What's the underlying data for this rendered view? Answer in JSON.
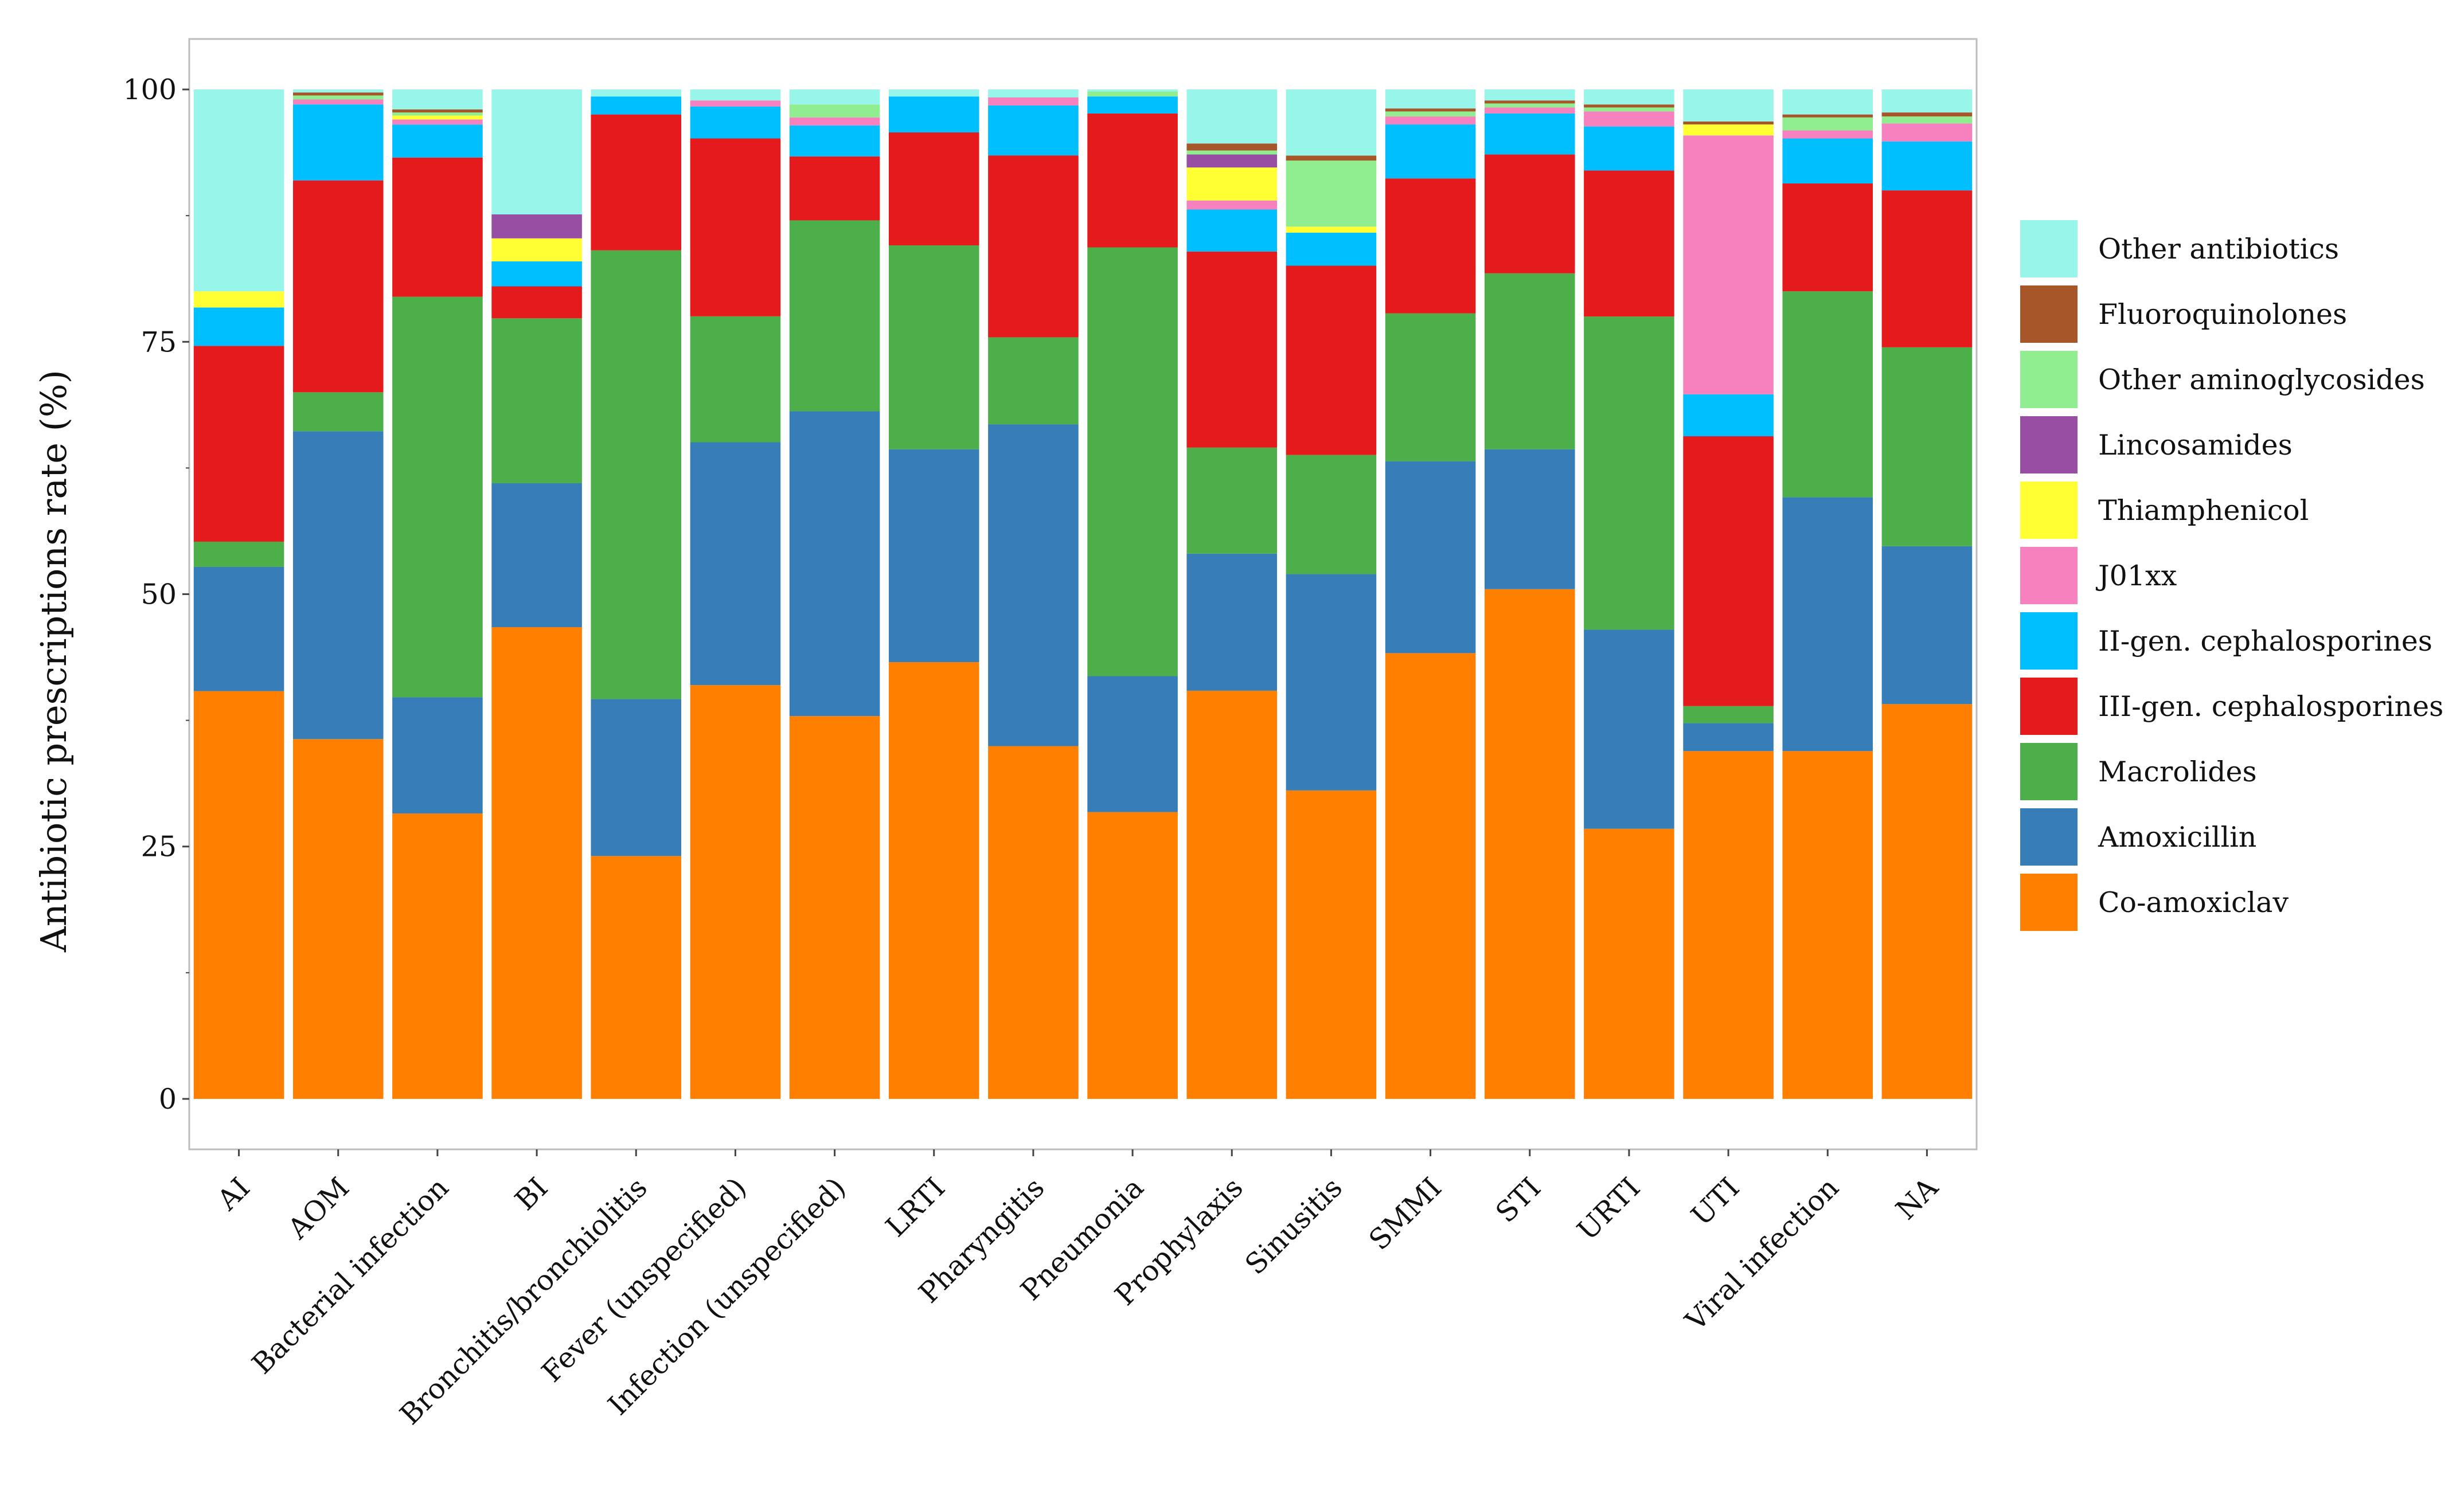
{
  "chart_data": {
    "type": "stacked-bar",
    "ylabel": "Antibiotic prescriptions rate (%)",
    "xlabel": "",
    "ylim": [
      -5,
      105
    ],
    "yticks": [
      0,
      25,
      50,
      75,
      100
    ],
    "grid": false,
    "legend_position": "right",
    "categories": [
      "AI",
      "AOM",
      "Bacterial infection",
      "BI",
      "Bronchitis/bronchiolitis",
      "Fever (unspecified)",
      "Infection (unspecified)",
      "LRTI",
      "Pharyngitis",
      "Pneumonia",
      "Prophylaxis",
      "Sinusitis",
      "SMMI",
      "STI",
      "URTI",
      "UTI",
      "Viral infection",
      "NA"
    ],
    "series": [
      {
        "name": "Co-amoxiclav",
        "color": "#FF7F00",
        "values": [
          40.4,
          36.0,
          28.5,
          47.2,
          24.3,
          41.4,
          38.3,
          43.7,
          35.3,
          28.7,
          40.8,
          30.8,
          44.6,
          51.0,
          27.0,
          34.8,
          34.8,
          39.5
        ]
      },
      {
        "name": "Amoxicillin",
        "color": "#377EB8",
        "values": [
          12.3,
          30.8,
          11.6,
          14.4,
          15.7,
          24.3,
          30.5,
          21.3,
          32.2,
          13.6,
          13.7,
          21.6,
          19.2,
          14.0,
          19.9,
          2.8,
          25.4,
          15.8
        ]
      },
      {
        "name": "Macrolides",
        "color": "#4DAF4A",
        "values": [
          2.5,
          3.9,
          40.0,
          16.5,
          44.9,
          12.6,
          19.1,
          20.4,
          8.7,
          42.9,
          10.6,
          11.9,
          14.8,
          17.6,
          31.3,
          1.7,
          20.6,
          19.9
        ]
      },
      {
        "name": "III-gen. cephalosporines",
        "color": "#E41A1C",
        "values": [
          19.4,
          21.2,
          13.9,
          3.2,
          13.6,
          17.8,
          6.4,
          11.3,
          18.2,
          13.4,
          19.6,
          18.9,
          13.5,
          11.9,
          14.6,
          27.0,
          10.8,
          15.7
        ]
      },
      {
        "name": "II-gen. cephalosporines",
        "color": "#00BFFF",
        "values": [
          3.8,
          7.6,
          3.3,
          2.5,
          1.8,
          3.2,
          3.1,
          3.6,
          5.0,
          1.7,
          4.2,
          3.3,
          5.4,
          4.1,
          4.4,
          4.2,
          4.5,
          4.9
        ]
      },
      {
        "name": "J01xx",
        "color": "#F781BF",
        "values": [
          0,
          0.5,
          0.5,
          0,
          0,
          0.6,
          0.8,
          0,
          0.8,
          0,
          0.9,
          0,
          0.8,
          0.6,
          1.5,
          25.9,
          0.8,
          1.8
        ]
      },
      {
        "name": "Thiamphenicol",
        "color": "#FFFF33",
        "values": [
          1.6,
          0,
          0.4,
          2.3,
          0,
          0,
          0,
          0,
          0,
          0,
          3.3,
          0.6,
          0,
          0,
          0,
          1.1,
          0,
          0
        ]
      },
      {
        "name": "Lincosamides",
        "color": "#984EA3",
        "values": [
          0,
          0,
          0,
          2.4,
          0,
          0,
          0,
          0,
          0,
          0,
          1.3,
          0,
          0,
          0,
          0,
          0,
          0,
          0
        ]
      },
      {
        "name": "Other aminoglycosides",
        "color": "#90EE90",
        "values": [
          0,
          0.4,
          0.3,
          0,
          0,
          0,
          1.3,
          0,
          0,
          0.5,
          0.4,
          6.6,
          0.5,
          0.4,
          0.4,
          0,
          1.3,
          0.7
        ]
      },
      {
        "name": "Fluoroquinolones",
        "color": "#A65628",
        "values": [
          0,
          0.3,
          0.3,
          0,
          0,
          0,
          0,
          0,
          0,
          0,
          0.7,
          0.5,
          0.3,
          0.3,
          0.3,
          0.3,
          0.3,
          0.4
        ]
      },
      {
        "name": "Other antibiotics",
        "color": "#98F5E9",
        "values": [
          20.0,
          0.3,
          2.0,
          12.5,
          0.7,
          1.1,
          1.5,
          0.7,
          0.8,
          0.2,
          5.4,
          6.6,
          1.9,
          1.1,
          1.5,
          3.2,
          2.5,
          2.3
        ]
      }
    ]
  }
}
